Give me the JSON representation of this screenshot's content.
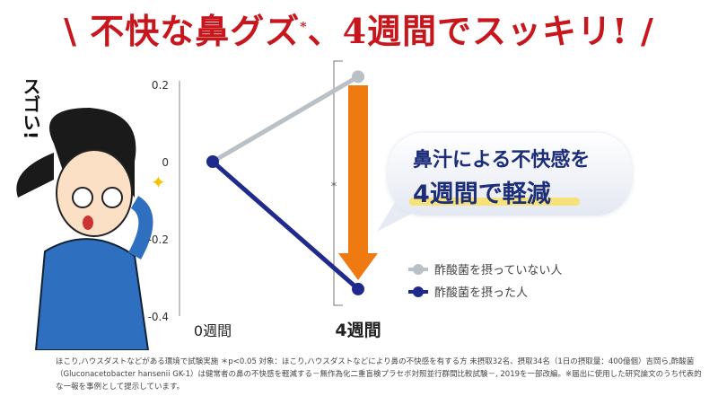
{
  "headline": {
    "text": "\\ 不快な鼻グズ",
    "asterisk": "*",
    "rest": "、4週間でスッキリ! /"
  },
  "exclamation": "スゴい!",
  "bubble": {
    "line1": "鼻汁による不快感を",
    "line2": "4週間で軽減"
  },
  "significance_mark": "*",
  "footnote": "ほこり,ハウスダストなどがある環境で試験実施 ＊p<0.05 対象：ほこり,ハウスダストなどにより鼻の不快感を有する方 未摂取32名、摂取34名（1日の摂取量：400億個）吉岡ら,酢酸菌（Gluconacetobacter hansenii GK-1）は健常者の鼻の不快感を軽減する－無作為化二重盲検プラセボ対照並行群間比較試験－, 2019を一部改編。※届出に使用した研究論文のうち代表的な一報を事例として提示しています。",
  "colors": {
    "headline": "#c8161d",
    "taken": "#1f2a8c",
    "not_taken": "#b9c0c6",
    "arrow": "#ef7a12",
    "bubble_text": "#1c2d7a"
  },
  "chart_data": {
    "type": "line",
    "categories": [
      "0週間",
      "4週間"
    ],
    "ylim": [
      -0.4,
      0.2
    ],
    "yticks": [
      0.2,
      0,
      -0.2,
      -0.4
    ],
    "ytick_labels": [
      "0.2",
      "0",
      "-0.2",
      "-0.4"
    ],
    "grid": false,
    "legend_placement": "bottom-right",
    "series": [
      {
        "name": "酢酸菌を摂っていない人",
        "values": [
          0,
          0.22
        ],
        "color": "#b9c0c6"
      },
      {
        "name": "酢酸菌を摂った人",
        "values": [
          0,
          -0.33
        ],
        "color": "#1f2a8c"
      }
    ]
  }
}
